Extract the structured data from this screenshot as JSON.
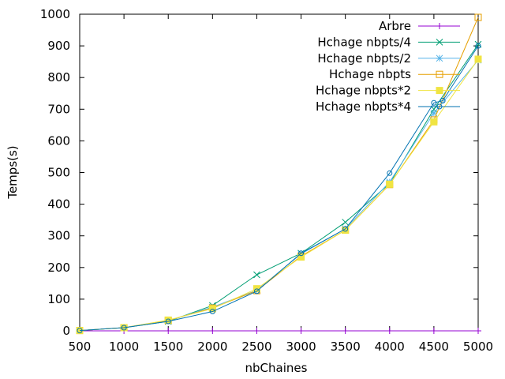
{
  "chart_data": {
    "type": "line",
    "title": "",
    "xlabel": "nbChaines",
    "ylabel": "Temps(s)",
    "xlim": [
      500,
      5000
    ],
    "ylim": [
      0,
      1000
    ],
    "x_ticks": [
      500,
      1000,
      1500,
      2000,
      2500,
      3000,
      3500,
      4000,
      4500,
      5000
    ],
    "y_ticks": [
      0,
      100,
      200,
      300,
      400,
      500,
      600,
      700,
      800,
      900,
      1000
    ],
    "grid": false,
    "legend_position": "top-right",
    "x": [
      500,
      1000,
      1500,
      2000,
      2500,
      3000,
      3500,
      4000,
      4500,
      5000
    ],
    "series": [
      {
        "name": "Arbre",
        "color": "#9400d3",
        "marker": "plus",
        "values": [
          0,
          0,
          0,
          0,
          0,
          0,
          0,
          0,
          0,
          0
        ]
      },
      {
        "name": "Hchage nbpts/4",
        "color": "#009e73",
        "marker": "cross",
        "values": [
          1,
          10,
          30,
          80,
          177,
          245,
          343,
          465,
          700,
          905
        ]
      },
      {
        "name": "Hchage nbpts/2",
        "color": "#56b4e9",
        "marker": "star",
        "values": [
          1,
          10,
          32,
          75,
          128,
          243,
          322,
          470,
          688,
          855
        ]
      },
      {
        "name": "Hchage nbpts",
        "color": "#e69f00",
        "marker": "open-square",
        "values": [
          1,
          10,
          33,
          72,
          127,
          236,
          318,
          462,
          666,
          990
        ]
      },
      {
        "name": "Hchage nbpts*2",
        "color": "#f0e442",
        "marker": "filled-square",
        "values": [
          1,
          10,
          34,
          70,
          133,
          233,
          318,
          463,
          660,
          858
        ]
      },
      {
        "name": "Hchage nbpts*4",
        "color": "#0072b2",
        "marker": "open-circle",
        "x": [
          500,
          1000,
          1500,
          2000,
          2500,
          3000,
          3500,
          4000,
          4500,
          4600,
          5000
        ],
        "values": [
          1,
          10,
          30,
          61,
          125,
          245,
          322,
          498,
          720,
          727,
          900
        ]
      }
    ]
  }
}
